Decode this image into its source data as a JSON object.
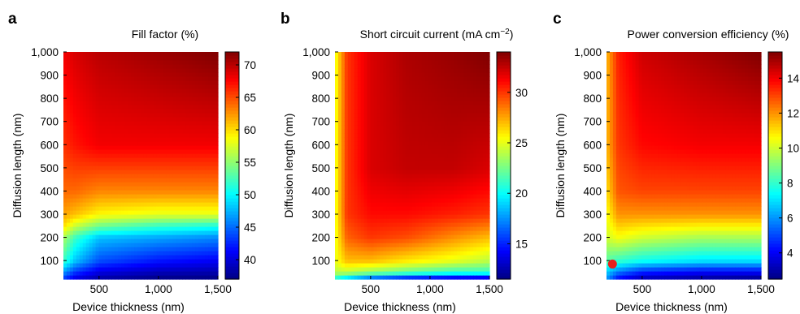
{
  "chart_data": [
    {
      "type": "heatmap",
      "panel": "a",
      "title": "Fill factor (%)",
      "title_super": "",
      "title_end": "",
      "xlabel": "Device thickness (nm)",
      "ylabel": "Diffusion length (nm)",
      "xlim": [
        200,
        1500
      ],
      "ylim": [
        20,
        1000
      ],
      "xticks": [
        500,
        1000,
        1500
      ],
      "xtick_labels": [
        "500",
        "1,000",
        "1,500"
      ],
      "yticks": [
        100,
        200,
        300,
        400,
        500,
        600,
        700,
        800,
        900,
        1000
      ],
      "ytick_labels": [
        "100",
        "200",
        "300",
        "400",
        "500",
        "600",
        "700",
        "800",
        "900",
        "1,000"
      ],
      "colorbar": {
        "min": 37,
        "max": 72,
        "ticks": [
          40,
          45,
          50,
          55,
          60,
          65,
          70
        ],
        "tick_labels": [
          "40",
          "45",
          "50",
          "55",
          "60",
          "65",
          "70"
        ]
      },
      "x": [
        200,
        300,
        500,
        1000,
        1500
      ],
      "y": [
        20,
        100,
        200,
        250,
        300,
        400,
        600,
        1000
      ],
      "z": [
        [
          43,
          40,
          38,
          37,
          37
        ],
        [
          52,
          48,
          44,
          42,
          41
        ],
        [
          56,
          52,
          48,
          47,
          46
        ],
        [
          60,
          57,
          54,
          52,
          51
        ],
        [
          62,
          61,
          59,
          58,
          58
        ],
        [
          64,
          64,
          63,
          63,
          63
        ],
        [
          66,
          67,
          68,
          68,
          68
        ],
        [
          68,
          69,
          70,
          71,
          72
        ]
      ],
      "marker": null
    },
    {
      "type": "heatmap",
      "panel": "b",
      "title": "Short circuit current (mA cm",
      "title_super": "−2",
      "title_end": ")",
      "xlabel": "Device thickness (nm)",
      "ylabel": "Diffusion length (nm)",
      "xlim": [
        200,
        1500
      ],
      "ylim": [
        20,
        1000
      ],
      "xticks": [
        500,
        1000,
        1500
      ],
      "xtick_labels": [
        "500",
        "1,000",
        "1,500"
      ],
      "yticks": [
        100,
        200,
        300,
        400,
        500,
        600,
        700,
        800,
        900,
        1000
      ],
      "ytick_labels": [
        "100",
        "200",
        "300",
        "400",
        "500",
        "600",
        "700",
        "800",
        "900",
        "1,000"
      ],
      "colorbar": {
        "min": 11.5,
        "max": 34,
        "ticks": [
          15,
          20,
          25,
          30
        ],
        "tick_labels": [
          "15",
          "20",
          "25",
          "30"
        ]
      },
      "x": [
        200,
        300,
        500,
        800,
        1200,
        1500
      ],
      "y": [
        20,
        50,
        100,
        200,
        300,
        500,
        1000
      ],
      "z": [
        [
          20,
          18,
          15,
          13,
          12,
          11.5
        ],
        [
          24,
          24,
          23,
          22,
          21,
          21
        ],
        [
          25,
          27,
          27,
          26,
          25,
          24
        ],
        [
          25,
          29,
          30,
          29.5,
          28,
          27
        ],
        [
          25,
          30,
          31,
          31,
          30.5,
          30
        ],
        [
          25,
          30,
          32,
          32.5,
          32.5,
          32
        ],
        [
          25,
          30,
          32,
          33,
          33.5,
          34
        ]
      ],
      "marker": null
    },
    {
      "type": "heatmap",
      "panel": "c",
      "title": "Power conversion efficiency (%)",
      "title_super": "",
      "title_end": "",
      "xlabel": "Device thickness (nm)",
      "ylabel": "Diffusion length (nm)",
      "xlim": [
        200,
        1500
      ],
      "ylim": [
        20,
        1000
      ],
      "xticks": [
        500,
        1000,
        1500
      ],
      "xtick_labels": [
        "500",
        "1,000",
        "1,500"
      ],
      "yticks": [
        100,
        200,
        300,
        400,
        500,
        600,
        700,
        800,
        900,
        1000
      ],
      "ytick_labels": [
        "100",
        "200",
        "300",
        "400",
        "500",
        "600",
        "700",
        "800",
        "900",
        "1,000"
      ],
      "colorbar": {
        "min": 2.5,
        "max": 15.5,
        "ticks": [
          4,
          6,
          8,
          10,
          12,
          14
        ],
        "tick_labels": [
          "4",
          "6",
          "8",
          "10",
          "12",
          "14"
        ]
      },
      "x": [
        200,
        300,
        500,
        1000,
        1500
      ],
      "y": [
        20,
        60,
        100,
        200,
        300,
        400,
        600,
        1000
      ],
      "z": [
        [
          6,
          4,
          3,
          2.7,
          2.5
        ],
        [
          7,
          6,
          5,
          4.5,
          4.5
        ],
        [
          8.5,
          8,
          7.5,
          7,
          7
        ],
        [
          10,
          10.5,
          10,
          9.5,
          9.5
        ],
        [
          10.5,
          12,
          12,
          12,
          12
        ],
        [
          11,
          12.8,
          13,
          13,
          13
        ],
        [
          11.5,
          13.2,
          13.8,
          14,
          14
        ],
        [
          11.5,
          13.5,
          14.5,
          15,
          15.5
        ]
      ],
      "marker": {
        "x": 250,
        "y": 85,
        "color": "#e8201e"
      }
    }
  ]
}
